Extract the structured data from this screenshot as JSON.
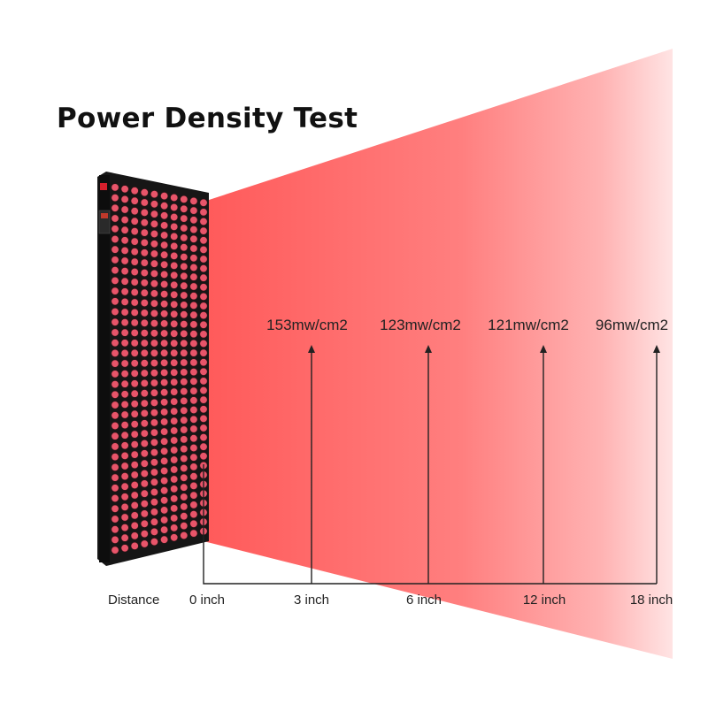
{
  "title": "Power Density Test",
  "distance_label": "Distance",
  "measurements": [
    {
      "distance": "0 inch",
      "power": ""
    },
    {
      "distance": "3 inch",
      "power": "153mw/cm2"
    },
    {
      "distance": "6 inch",
      "power": "123mw/cm2"
    },
    {
      "distance": "12 inch",
      "power": "121mw/cm2"
    },
    {
      "distance": "18 inch",
      "power": "96mw/cm2"
    }
  ],
  "colors": {
    "beam_start": "#ff5c5c",
    "beam_end": "#ffe3e3",
    "panel_body": "#1a1a1a",
    "led": "#e8556a",
    "line": "#222222"
  }
}
